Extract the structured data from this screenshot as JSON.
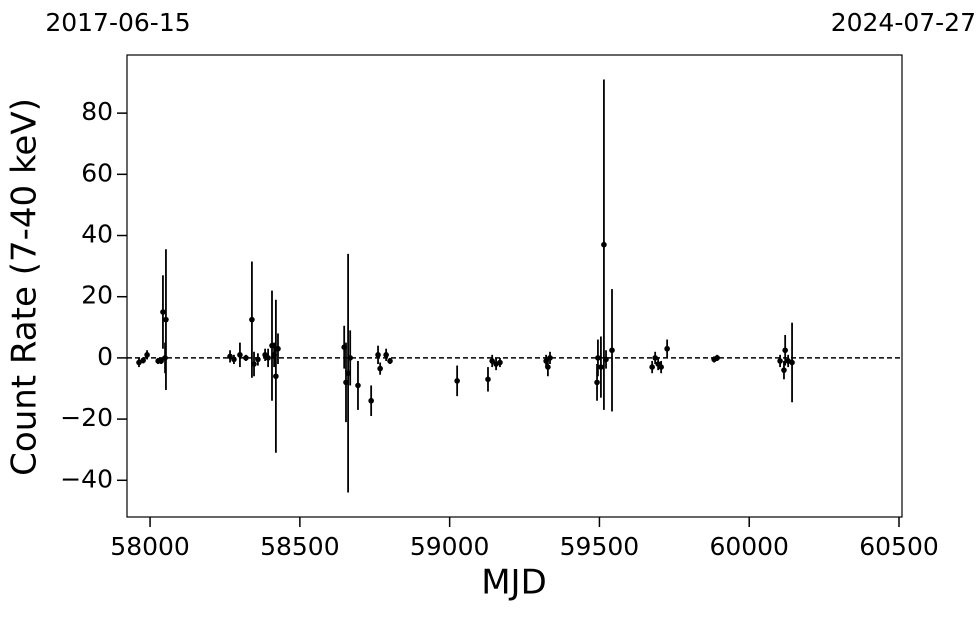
{
  "chart_data": {
    "type": "errorbar",
    "top_labels": [
      "2017-06-15",
      "2024-07-27"
    ],
    "xlabel": "MJD",
    "ylabel": "Count Rate (7-40 keV)",
    "xlim": [
      57923,
      60510
    ],
    "ylim": [
      -52,
      99
    ],
    "xticks": [
      58000,
      58500,
      59000,
      59500,
      60000,
      60500
    ],
    "yticks": [
      {
        "value": -40,
        "label": "−40"
      },
      {
        "value": -20,
        "label": "−20"
      },
      0,
      20,
      40,
      60,
      80
    ],
    "reference_line": 0,
    "color": "#000000",
    "x": [
      57963,
      57977,
      57990,
      58027,
      58037,
      58043,
      58050,
      58053,
      58267,
      58280,
      58300,
      58320,
      58340,
      58347,
      58360,
      58384,
      58394,
      58407,
      58414,
      58420,
      58427,
      58648,
      58654,
      58661,
      58668,
      58694,
      58738,
      58761,
      58768,
      58788,
      58801,
      59025,
      59128,
      59142,
      59155,
      59168,
      59322,
      59328,
      59335,
      59492,
      59495,
      59505,
      59515,
      59522,
      59542,
      59676,
      59686,
      59696,
      59706,
      59726,
      59883,
      59893,
      60103,
      60116,
      60120,
      60130,
      60143
    ],
    "values": [
      -1.5,
      -0.8,
      1,
      -1,
      -1,
      15,
      0,
      12.5,
      0.5,
      -0.5,
      1,
      0,
      12.5,
      -2,
      -0.5,
      1,
      0,
      4,
      1,
      -6,
      3,
      3.5,
      -8,
      -5,
      0,
      -9,
      -14,
      1,
      -3.5,
      1,
      -1,
      -7.5,
      -7,
      -1,
      -2,
      -1.5,
      -1,
      -3,
      0,
      -8,
      0,
      -3,
      37,
      -0.5,
      2.5,
      -3,
      0,
      -2,
      -3,
      3,
      -0.5,
      0,
      -1,
      -4,
      2.5,
      -1,
      -1.5
    ],
    "errors": [
      1.5,
      1,
      1.5,
      1,
      1,
      12,
      5,
      23,
      2,
      1.5,
      4,
      1,
      19,
      4,
      2,
      2,
      3,
      18,
      4,
      25,
      5,
      7,
      13,
      39,
      9,
      8,
      5,
      3,
      2,
      2,
      1,
      5,
      4,
      2,
      2,
      1.5,
      2,
      3,
      2,
      6,
      6,
      10,
      54,
      3,
      20,
      2,
      2,
      2,
      2,
      3,
      1,
      1,
      2,
      3,
      5,
      2,
      13
    ]
  }
}
